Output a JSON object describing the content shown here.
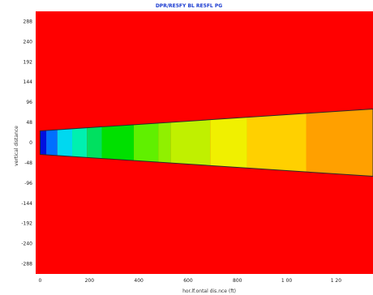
{
  "chart_data": {
    "type": "heatmap",
    "title": "DPR/RE5FY BL RE5FL PG",
    "xlabel": "hor.lf.ontal dis.nce (ft)",
    "ylabel": "vertical distance",
    "xlim": [
      -18,
      1350
    ],
    "ylim": [
      -312,
      312
    ],
    "x_ticks": [
      {
        "value": 0,
        "label": "0"
      },
      {
        "value": 200,
        "label": "200"
      },
      {
        "value": 400,
        "label": "400"
      },
      {
        "value": 600,
        "label": "600"
      },
      {
        "value": 800,
        "label": "800"
      },
      {
        "value": 1000,
        "label": "1 00"
      },
      {
        "value": 1200,
        "label": "1 20"
      }
    ],
    "y_ticks": [
      {
        "value": 288,
        "label": "288"
      },
      {
        "value": 240,
        "label": "240"
      },
      {
        "value": 192,
        "label": "192"
      },
      {
        "value": 144,
        "label": "144"
      },
      {
        "value": 96,
        "label": "96"
      },
      {
        "value": 48,
        "label": "48"
      },
      {
        "value": 0,
        "label": "0"
      },
      {
        "value": -48,
        "label": "-48"
      },
      {
        "value": -96,
        "label": "-96"
      },
      {
        "value": -144,
        "label": "-144"
      },
      {
        "value": -192,
        "label": "-192"
      },
      {
        "value": -240,
        "label": "-240"
      },
      {
        "value": -288,
        "label": "-288"
      }
    ],
    "background_color": "#ff0000",
    "plume": {
      "x_start": 0,
      "x_end": 1350,
      "half_width_start": 28,
      "half_width_end": 80,
      "bands": [
        {
          "x0": 0,
          "x1": 25,
          "color": "#0010e0"
        },
        {
          "x0": 25,
          "x1": 70,
          "color": "#0070ff"
        },
        {
          "x0": 70,
          "x1": 130,
          "color": "#00d8f0"
        },
        {
          "x0": 130,
          "x1": 190,
          "color": "#00f0b0"
        },
        {
          "x0": 190,
          "x1": 250,
          "color": "#00e060"
        },
        {
          "x0": 250,
          "x1": 380,
          "color": "#00e000"
        },
        {
          "x0": 380,
          "x1": 480,
          "color": "#60f000"
        },
        {
          "x0": 480,
          "x1": 530,
          "color": "#90f000"
        },
        {
          "x0": 530,
          "x1": 690,
          "color": "#c0f000"
        },
        {
          "x0": 690,
          "x1": 840,
          "color": "#f0f000"
        },
        {
          "x0": 840,
          "x1": 1080,
          "color": "#ffd000"
        },
        {
          "x0": 1080,
          "x1": 1350,
          "color": "#ffa000"
        }
      ]
    }
  }
}
